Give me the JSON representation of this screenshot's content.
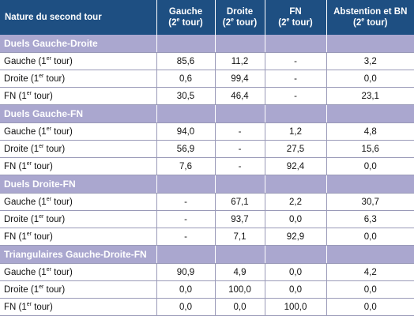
{
  "header": {
    "col0": "Nature du second tour",
    "col1_a": "Gauche",
    "col1_b": "(2",
    "col1_sup": "e",
    "col1_c": " tour)",
    "col2_a": "Droite",
    "col2_b": "(2",
    "col2_sup": "e",
    "col2_c": " tour)",
    "col3_a": "FN",
    "col3_b": "(2",
    "col3_sup": "e",
    "col3_c": " tour)",
    "col4_a": "Abstention et BN",
    "col4_b": "(2",
    "col4_sup": "e",
    "col4_c": " tour)"
  },
  "sections": [
    {
      "title": "Duels Gauche-Droite",
      "rows": [
        {
          "label": "Gauche (1",
          "sup": "er",
          "label_end": " tour)",
          "cells": [
            "85,6",
            "11,2",
            "-",
            "3,2"
          ]
        },
        {
          "label": "Droite (1",
          "sup": "er",
          "label_end": " tour)",
          "cells": [
            "0,6",
            "99,4",
            "-",
            "0,0"
          ]
        },
        {
          "label": "FN (1",
          "sup": "er",
          "label_end": " tour)",
          "cells": [
            "30,5",
            "46,4",
            "-",
            "23,1"
          ]
        }
      ]
    },
    {
      "title": "Duels Gauche-FN",
      "rows": [
        {
          "label": "Gauche (1",
          "sup": "er",
          "label_end": " tour)",
          "cells": [
            "94,0",
            "-",
            "1,2",
            "4,8"
          ]
        },
        {
          "label": "Droite (1",
          "sup": "er",
          "label_end": " tour)",
          "cells": [
            "56,9",
            "-",
            "27,5",
            "15,6"
          ]
        },
        {
          "label": "FN (1",
          "sup": "er",
          "label_end": " tour)",
          "cells": [
            "7,6",
            "-",
            "92,4",
            "0,0"
          ]
        }
      ]
    },
    {
      "title": "Duels Droite-FN",
      "rows": [
        {
          "label": "Gauche (1",
          "sup": "er",
          "label_end": " tour)",
          "cells": [
            "-",
            "67,1",
            "2,2",
            "30,7"
          ]
        },
        {
          "label": "Droite (1",
          "sup": "er",
          "label_end": " tour)",
          "cells": [
            "-",
            "93,7",
            "0,0",
            "6,3"
          ]
        },
        {
          "label": "FN (1",
          "sup": "er",
          "label_end": " tour)",
          "cells": [
            "-",
            "7,1",
            "92,9",
            "0,0"
          ]
        }
      ]
    },
    {
      "title": "Triangulaires Gauche-Droite-FN",
      "rows": [
        {
          "label": "Gauche (1",
          "sup": "er",
          "label_end": " tour)",
          "cells": [
            "90,9",
            "4,9",
            "0,0",
            "4,2"
          ]
        },
        {
          "label": "Droite (1",
          "sup": "er",
          "label_end": " tour)",
          "cells": [
            "0,0",
            "100,0",
            "0,0",
            "0,0"
          ]
        },
        {
          "label": "FN (1",
          "sup": "er",
          "label_end": " tour)",
          "cells": [
            "0,0",
            "0,0",
            "100,0",
            "0,0"
          ]
        }
      ]
    }
  ]
}
